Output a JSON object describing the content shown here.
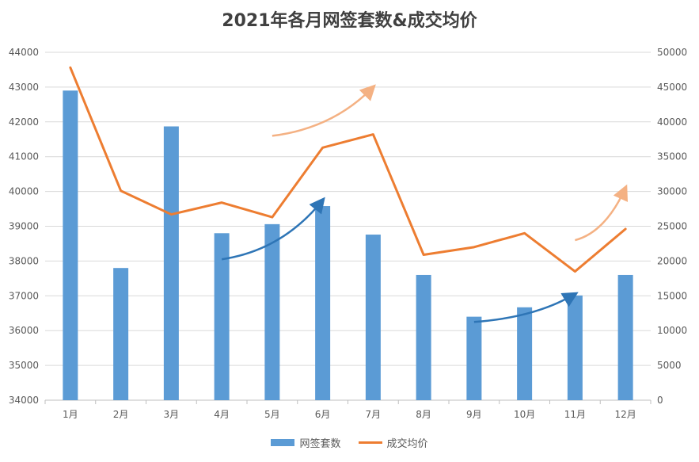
{
  "title": "2021年各月网签套数&成交均价",
  "colors": {
    "bars": "#5b9bd5",
    "line": "#ed7d31",
    "grid": "#d9d9d9",
    "axis": "#bfbfbf"
  },
  "legend": {
    "bar_label": "网签套数",
    "line_label": "成交均价",
    "position": "bottom"
  },
  "chart_data": {
    "type": "bar+line",
    "categories": [
      "1月",
      "2月",
      "3月",
      "4月",
      "5月",
      "6月",
      "7月",
      "8月",
      "9月",
      "10月",
      "11月",
      "12月"
    ],
    "series": [
      {
        "name": "网签套数",
        "type": "bar",
        "axis": "left",
        "values": [
          42900,
          37800,
          41870,
          38800,
          39060,
          39580,
          38760,
          37600,
          36400,
          36670,
          37010,
          37600
        ]
      },
      {
        "name": "成交均价",
        "type": "line",
        "axis": "right",
        "values": [
          47800,
          30100,
          26700,
          28400,
          26300,
          36300,
          38200,
          20900,
          22000,
          24000,
          18500,
          24600
        ]
      }
    ],
    "left_axis": {
      "min": 34000,
      "max": 44000,
      "step": 1000
    },
    "right_axis": {
      "min": 0,
      "max": 50000,
      "step": 5000
    },
    "grid": true,
    "trend_arrows": [
      {
        "color": "#2e75b6",
        "from": {
          "category": "4月",
          "y": 38050
        },
        "to": {
          "category": "6月",
          "y": 39750
        }
      },
      {
        "color": "#2e75b6",
        "from": {
          "category": "9月",
          "y": 36250
        },
        "to": {
          "category": "11月",
          "y": 37050
        }
      },
      {
        "color": "#f4b183",
        "from": {
          "category": "5月",
          "y": 38000
        },
        "to": {
          "category": "7月",
          "y": 45000
        }
      },
      {
        "color": "#f4b183",
        "from": {
          "category": "11月",
          "y": 23000
        },
        "to": {
          "category": "12月",
          "y": 30500
        }
      }
    ]
  }
}
